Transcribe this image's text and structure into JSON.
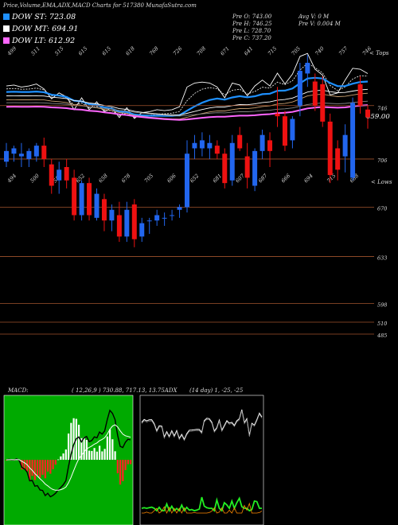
{
  "header": {
    "title": "Price,Volume,EMA,ADX,MACD Charts for 517380  MunafaSutra.com",
    "legend": [
      {
        "label": "DOW ST: 723.08",
        "color": "#1e90ff"
      },
      {
        "label": "DOW MT: 694.91",
        "color": "#ffffff"
      },
      {
        "label": "DOW LT: 612.92",
        "color": "#ff66ff"
      }
    ],
    "prices": {
      "open": "Pre   O: 743.00",
      "high": "Pre   H: 746.25",
      "low": "Pre   L: 728.70",
      "close": "Pre   C: 737.20"
    },
    "volume": {
      "avg": "Avg V: 0   M",
      "pre": "Pre   V: 0.004   M"
    }
  },
  "top_panel": {
    "corner_label": "< Tops",
    "last_price_label": "659.00",
    "tops_labels": [
      "499",
      "511",
      "515",
      "615",
      "615",
      "618",
      "768",
      "726",
      "708",
      "671",
      "641",
      "715",
      "705",
      "740",
      "757",
      "746"
    ]
  },
  "candle_panel": {
    "corner_label": "< Lows",
    "lows_labels": [
      "494",
      "500",
      "556",
      "652",
      "658",
      "678",
      "705",
      "606",
      "652",
      "681",
      "607",
      "687",
      "666",
      "694",
      "715",
      "688"
    ],
    "axis_labels": [
      "746",
      "706",
      "670",
      "633",
      "598",
      "510",
      "485"
    ]
  },
  "indicators": {
    "macd_label": "MACD:",
    "macd_values": "( 12,26,9 ) 730.88, 717.13, 13.75ADX",
    "adx_values": "(14  day) 1, -25, -25"
  },
  "colors": {
    "ema_short": "#1e90ff",
    "ema_mid": "#ffffff",
    "ema_long": "#ff66ff",
    "bull": "#2266ee",
    "bear": "#ee1111",
    "grid": "#a0522d",
    "macd_bg": "#00aa00"
  },
  "chart_data": {
    "type": "candlestick",
    "candles": [
      {
        "o": 704,
        "h": 718,
        "l": 700,
        "c": 712
      },
      {
        "o": 710,
        "h": 716,
        "l": 704,
        "c": 714
      },
      {
        "o": 708,
        "h": 718,
        "l": 700,
        "c": 710
      },
      {
        "o": 706,
        "h": 714,
        "l": 700,
        "c": 712
      },
      {
        "o": 708,
        "h": 718,
        "l": 704,
        "c": 716
      },
      {
        "o": 716,
        "h": 722,
        "l": 700,
        "c": 706
      },
      {
        "o": 702,
        "h": 706,
        "l": 680,
        "c": 686
      },
      {
        "o": 690,
        "h": 704,
        "l": 680,
        "c": 698
      },
      {
        "o": 700,
        "h": 706,
        "l": 684,
        "c": 690
      },
      {
        "o": 692,
        "h": 698,
        "l": 660,
        "c": 664
      },
      {
        "o": 664,
        "h": 690,
        "l": 660,
        "c": 688
      },
      {
        "o": 688,
        "h": 692,
        "l": 660,
        "c": 664
      },
      {
        "o": 662,
        "h": 684,
        "l": 660,
        "c": 680
      },
      {
        "o": 676,
        "h": 680,
        "l": 652,
        "c": 660
      },
      {
        "o": 660,
        "h": 672,
        "l": 652,
        "c": 668
      },
      {
        "o": 664,
        "h": 674,
        "l": 644,
        "c": 648
      },
      {
        "o": 648,
        "h": 674,
        "l": 644,
        "c": 668
      },
      {
        "o": 672,
        "h": 676,
        "l": 640,
        "c": 646
      },
      {
        "o": 648,
        "h": 662,
        "l": 644,
        "c": 658
      },
      {
        "o": 660,
        "h": 662,
        "l": 650,
        "c": 660
      },
      {
        "o": 660,
        "h": 668,
        "l": 656,
        "c": 664
      },
      {
        "o": 662,
        "h": 666,
        "l": 656,
        "c": 662
      },
      {
        "o": 664,
        "h": 668,
        "l": 660,
        "c": 664
      },
      {
        "o": 668,
        "h": 672,
        "l": 662,
        "c": 670
      },
      {
        "o": 670,
        "h": 720,
        "l": 666,
        "c": 710
      },
      {
        "o": 714,
        "h": 724,
        "l": 706,
        "c": 718
      },
      {
        "o": 714,
        "h": 726,
        "l": 708,
        "c": 720
      },
      {
        "o": 714,
        "h": 724,
        "l": 706,
        "c": 718
      },
      {
        "o": 716,
        "h": 720,
        "l": 706,
        "c": 710
      },
      {
        "o": 710,
        "h": 714,
        "l": 684,
        "c": 688
      },
      {
        "o": 690,
        "h": 724,
        "l": 686,
        "c": 718
      },
      {
        "o": 724,
        "h": 730,
        "l": 712,
        "c": 714
      },
      {
        "o": 708,
        "h": 718,
        "l": 684,
        "c": 692
      },
      {
        "o": 686,
        "h": 714,
        "l": 682,
        "c": 712
      },
      {
        "o": 712,
        "h": 728,
        "l": 706,
        "c": 724
      },
      {
        "o": 720,
        "h": 726,
        "l": 700,
        "c": 712
      },
      {
        "o": 740,
        "h": 760,
        "l": 730,
        "c": 738
      },
      {
        "o": 738,
        "h": 742,
        "l": 712,
        "c": 716
      },
      {
        "o": 720,
        "h": 738,
        "l": 714,
        "c": 736
      },
      {
        "o": 746,
        "h": 778,
        "l": 738,
        "c": 772
      },
      {
        "o": 770,
        "h": 784,
        "l": 760,
        "c": 778
      },
      {
        "o": 764,
        "h": 770,
        "l": 742,
        "c": 746
      },
      {
        "o": 762,
        "h": 768,
        "l": 730,
        "c": 734
      },
      {
        "o": 734,
        "h": 740,
        "l": 688,
        "c": 694
      },
      {
        "o": 714,
        "h": 720,
        "l": 690,
        "c": 698
      },
      {
        "o": 708,
        "h": 732,
        "l": 696,
        "c": 724
      },
      {
        "o": 692,
        "h": 752,
        "l": 690,
        "c": 748
      },
      {
        "o": 762,
        "h": 768,
        "l": 740,
        "c": 746
      },
      {
        "o": 743,
        "h": 746.25,
        "l": 728.7,
        "c": 737.2
      }
    ],
    "y_ticks": [
      746,
      706,
      670,
      633,
      598,
      510,
      485
    ]
  }
}
